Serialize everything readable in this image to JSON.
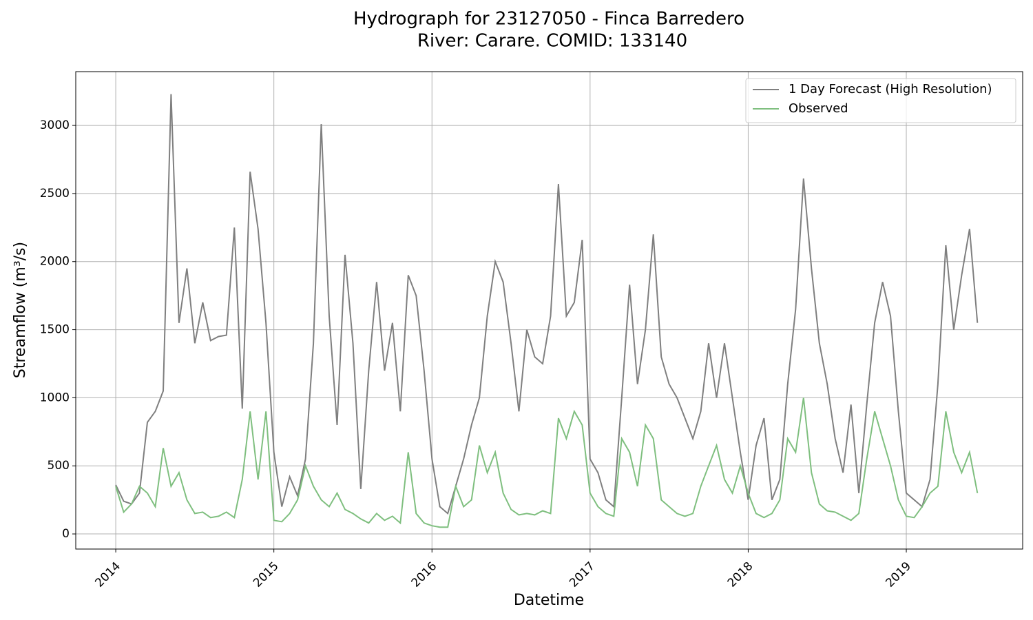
{
  "chart_data": {
    "type": "line",
    "title": "Hydrograph for 23127050 - Finca Barredero",
    "subtitle": "River: Carare. COMID: 133140",
    "x_label": "Datetime",
    "y_label": "Streamflow (m³/s)",
    "xlim": [
      2013.747,
      2019.736
    ],
    "xticks": [
      2014,
      2015,
      2016,
      2017,
      2018,
      2019
    ],
    "ylim": [
      -111,
      3395
    ],
    "yticks": [
      0,
      500,
      1000,
      1500,
      2000,
      2500,
      3000
    ],
    "grid": true,
    "legend": "upper right",
    "x": [
      2014.0,
      2014.05,
      2014.1,
      2014.15,
      2014.2,
      2014.25,
      2014.3,
      2014.35,
      2014.4,
      2014.45,
      2014.5,
      2014.55,
      2014.6,
      2014.65,
      2014.7,
      2014.75,
      2014.8,
      2014.85,
      2014.9,
      2014.95,
      2015.0,
      2015.05,
      2015.1,
      2015.15,
      2015.2,
      2015.25,
      2015.3,
      2015.35,
      2015.4,
      2015.45,
      2015.5,
      2015.55,
      2015.6,
      2015.65,
      2015.7,
      2015.75,
      2015.8,
      2015.85,
      2015.9,
      2015.95,
      2016.0,
      2016.05,
      2016.1,
      2016.15,
      2016.2,
      2016.25,
      2016.3,
      2016.35,
      2016.4,
      2016.45,
      2016.5,
      2016.55,
      2016.6,
      2016.65,
      2016.7,
      2016.75,
      2016.8,
      2016.85,
      2016.9,
      2016.95,
      2017.0,
      2017.05,
      2017.1,
      2017.15,
      2017.2,
      2017.25,
      2017.3,
      2017.35,
      2017.4,
      2017.45,
      2017.5,
      2017.55,
      2017.6,
      2017.65,
      2017.7,
      2017.75,
      2017.8,
      2017.85,
      2017.9,
      2017.95,
      2018.0,
      2018.05,
      2018.1,
      2018.15,
      2018.2,
      2018.25,
      2018.3,
      2018.35,
      2018.4,
      2018.45,
      2018.5,
      2018.55,
      2018.6,
      2018.65,
      2018.7,
      2018.75,
      2018.8,
      2018.85,
      2018.9,
      2018.95,
      2019.0,
      2019.05,
      2019.1,
      2019.15,
      2019.2,
      2019.25,
      2019.3,
      2019.35,
      2019.4,
      2019.45
    ],
    "series": [
      {
        "name": "1 Day Forecast (High Resolution)",
        "color": "#7f7f7f",
        "values": [
          360,
          240,
          220,
          300,
          820,
          900,
          1050,
          3230,
          1550,
          1950,
          1400,
          1700,
          1420,
          1450,
          1460,
          2250,
          920,
          2660,
          2240,
          1550,
          600,
          200,
          420,
          280,
          550,
          1400,
          3010,
          1600,
          800,
          2050,
          1400,
          330,
          1200,
          1850,
          1200,
          1550,
          900,
          1900,
          1750,
          1200,
          550,
          200,
          150,
          350,
          550,
          800,
          1000,
          1600,
          2000,
          1850,
          1400,
          900,
          1500,
          1300,
          1250,
          1600,
          2570,
          1600,
          1700,
          2160,
          550,
          450,
          250,
          200,
          1000,
          1830,
          1100,
          1500,
          2200,
          1300,
          1100,
          1000,
          850,
          700,
          900,
          1400,
          1000,
          1400,
          1000,
          600,
          250,
          650,
          850,
          250,
          400,
          1100,
          1650,
          2610,
          1950,
          1400,
          1100,
          700,
          450,
          950,
          300,
          950,
          1550,
          1850,
          1600,
          900,
          300,
          250,
          200,
          400,
          1100,
          2120,
          1500,
          1900,
          2240,
          1550
        ]
      },
      {
        "name": "Observed",
        "color": "#7fbf7f",
        "values": [
          350,
          160,
          220,
          350,
          300,
          200,
          630,
          350,
          450,
          250,
          150,
          160,
          120,
          130,
          160,
          120,
          400,
          900,
          400,
          900,
          100,
          90,
          150,
          250,
          500,
          350,
          250,
          200,
          300,
          180,
          150,
          110,
          80,
          150,
          100,
          130,
          80,
          600,
          150,
          80,
          60,
          50,
          50,
          350,
          200,
          250,
          650,
          450,
          600,
          300,
          180,
          140,
          150,
          140,
          170,
          150,
          850,
          700,
          900,
          800,
          300,
          200,
          150,
          130,
          700,
          600,
          350,
          800,
          700,
          250,
          200,
          150,
          130,
          150,
          350,
          500,
          650,
          400,
          300,
          500,
          300,
          150,
          120,
          150,
          250,
          700,
          600,
          1000,
          450,
          220,
          170,
          160,
          130,
          100,
          150,
          550,
          900,
          700,
          500,
          250,
          130,
          120,
          200,
          300,
          350,
          900,
          600,
          450,
          600,
          300
        ]
      }
    ]
  }
}
